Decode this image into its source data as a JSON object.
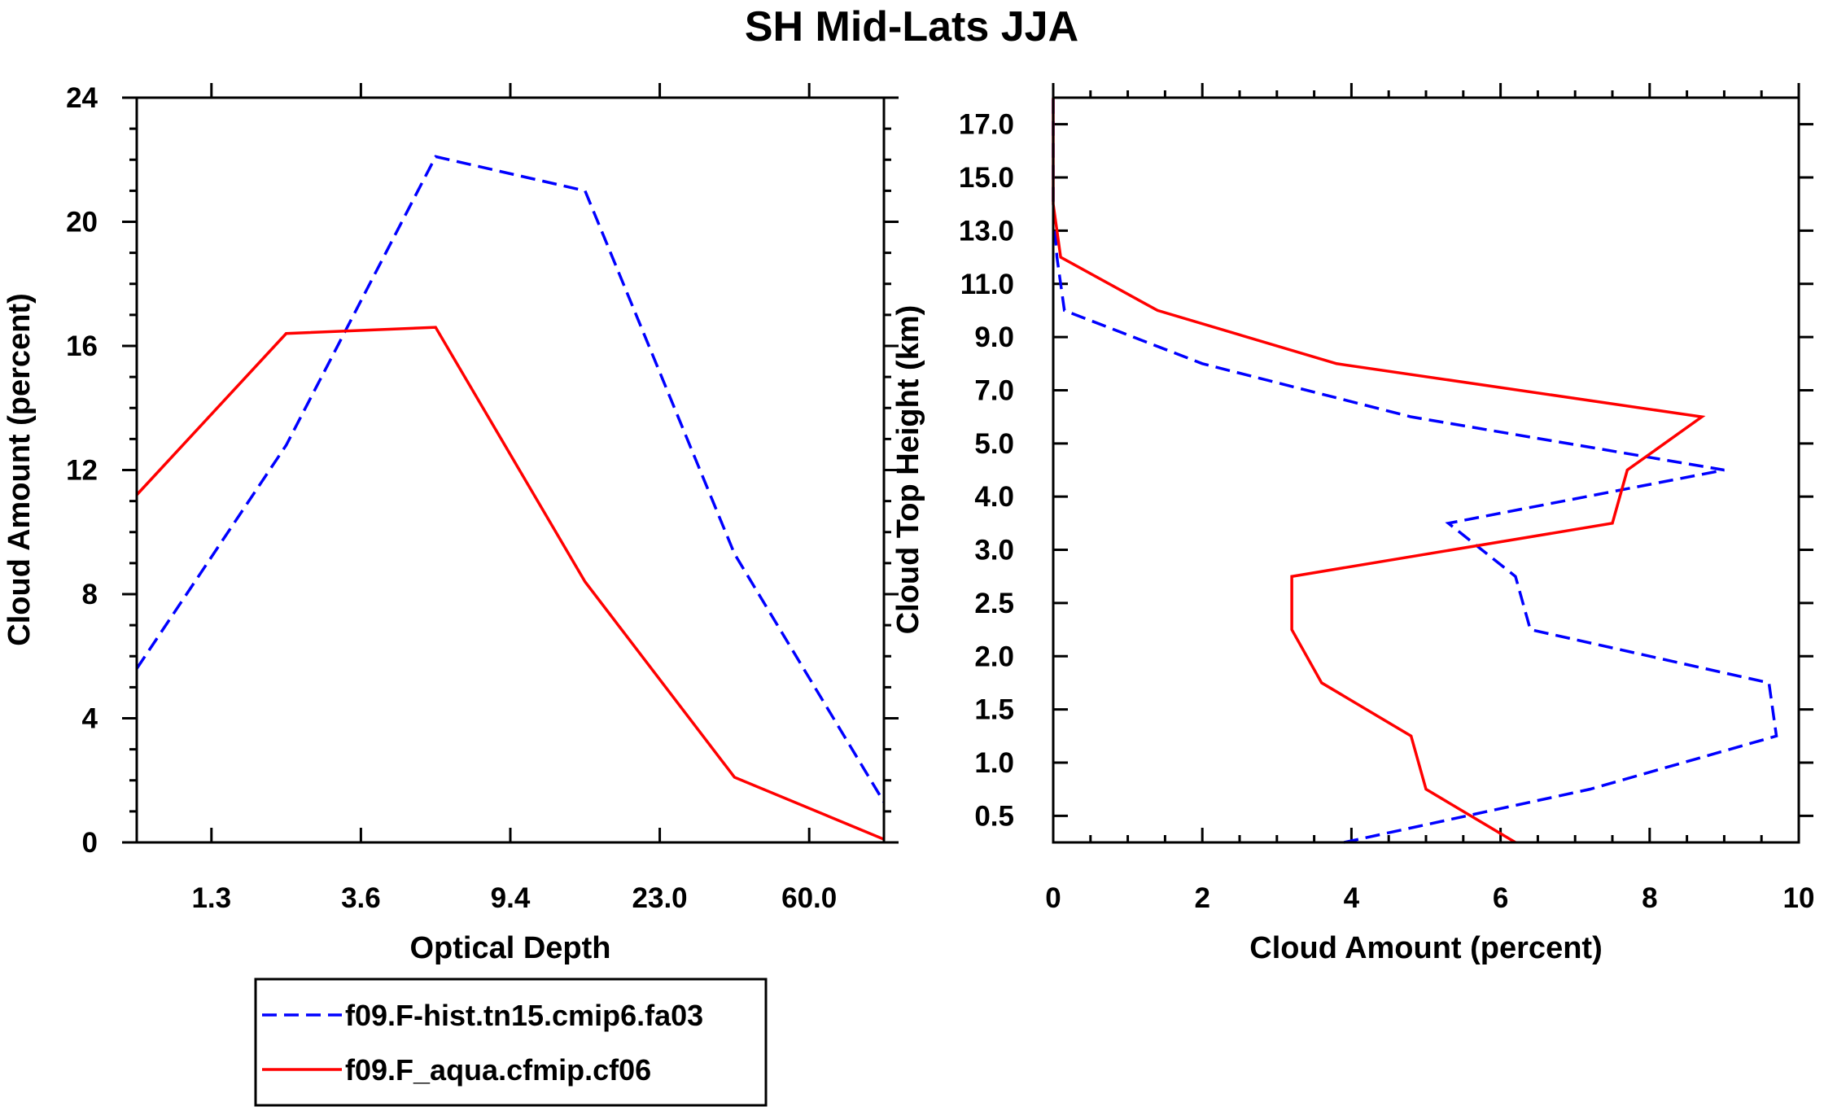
{
  "chart_data": [
    {
      "type": "line",
      "id": "left",
      "title": "SH Mid-Lats JJA",
      "xlabel": "Optical Depth",
      "ylabel": "Cloud Amount (percent)",
      "x_positions": [
        0,
        1,
        2,
        3,
        4,
        5
      ],
      "x_tick_positions": [
        0.5,
        1.5,
        2.5,
        3.5,
        4.5
      ],
      "x_tick_labels": [
        "1.3",
        "3.6",
        "9.4",
        "23.0",
        "60.0"
      ],
      "xlim": [
        0,
        5
      ],
      "ylim": [
        0,
        24
      ],
      "y_ticks": [
        0,
        4,
        8,
        12,
        16,
        20,
        24
      ],
      "y_tick_labels": [
        "0",
        "4",
        "8",
        "12",
        "16",
        "20",
        "24"
      ],
      "series": [
        {
          "name": "f09.F-hist.tn15.cmip6.fa03",
          "color": "#0000ff",
          "dash": true,
          "values": [
            5.6,
            12.8,
            22.1,
            21.0,
            9.3,
            1.3
          ]
        },
        {
          "name": "f09.F_aqua.cfmip.cf06",
          "color": "#ff0000",
          "dash": false,
          "values": [
            11.2,
            16.4,
            16.6,
            8.4,
            2.1,
            0.1
          ]
        }
      ]
    },
    {
      "type": "line",
      "id": "right",
      "xlabel": "Cloud Amount (percent)",
      "ylabel": "Cloud Top Height (km)",
      "xlim": [
        0,
        10
      ],
      "x_ticks": [
        0,
        2,
        4,
        6,
        8,
        10
      ],
      "x_tick_labels": [
        "0",
        "2",
        "4",
        "6",
        "8",
        "10"
      ],
      "y_positions": [
        0,
        1,
        2,
        3,
        4,
        5,
        6,
        7,
        8,
        9,
        10,
        11,
        12,
        13,
        14
      ],
      "y_tick_positions": [
        0.5,
        1.5,
        2.5,
        3.5,
        4.5,
        5.5,
        6.5,
        7.5,
        8.5,
        9.5,
        10.5,
        11.5,
        12.5,
        13.5
      ],
      "y_tick_labels": [
        "0.5",
        "1.0",
        "1.5",
        "2.0",
        "2.5",
        "3.0",
        "4.0",
        "5.0",
        "7.0",
        "9.0",
        "11.0",
        "13.0",
        "15.0",
        "17.0"
      ],
      "ylim": [
        0,
        14
      ],
      "series": [
        {
          "name": "f09.F-hist.tn15.cmip6.fa03",
          "color": "#0000ff",
          "dash": true,
          "values": [
            3.9,
            7.2,
            9.7,
            9.6,
            6.4,
            6.2,
            5.3,
            9.0,
            4.8,
            2.0,
            0.15,
            0.05,
            0.0,
            0.0,
            0.0
          ]
        },
        {
          "name": "f09.F_aqua.cfmip.cf06",
          "color": "#ff0000",
          "dash": false,
          "values": [
            6.2,
            5.0,
            4.8,
            3.6,
            3.2,
            3.2,
            7.5,
            7.7,
            8.7,
            3.8,
            1.4,
            0.1,
            0.0,
            0.0,
            0.0
          ]
        }
      ]
    }
  ],
  "legend": {
    "items": [
      {
        "label": "f09.F-hist.tn15.cmip6.fa03",
        "color": "#0000ff",
        "dash": true
      },
      {
        "label": "f09.F_aqua.cfmip.cf06",
        "color": "#ff0000",
        "dash": false
      }
    ]
  }
}
